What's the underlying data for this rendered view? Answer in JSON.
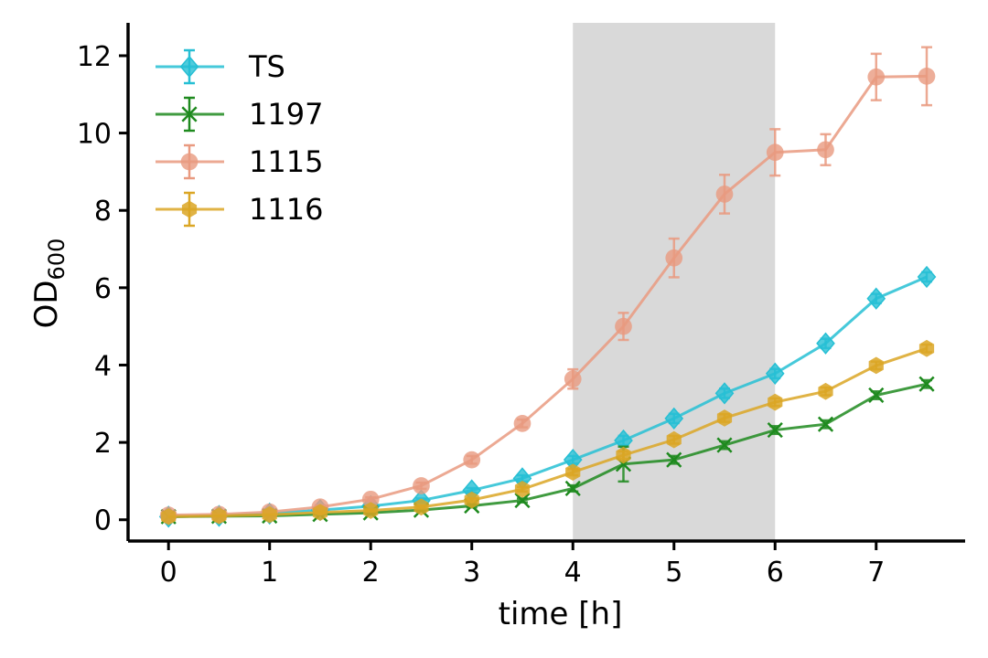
{
  "chart_data": {
    "type": "line",
    "xlabel": "time [h]",
    "ylabel": "OD",
    "ylabel_subscript": "600",
    "xlim": [
      -0.4,
      7.88
    ],
    "ylim": [
      -0.55,
      12.85
    ],
    "xticks": [
      0,
      1,
      2,
      3,
      4,
      5,
      6,
      7
    ],
    "yticks": [
      0,
      2,
      4,
      6,
      8,
      10,
      12
    ],
    "grid": false,
    "legend_position": "upper-left",
    "shaded_interval": {
      "x0": 4,
      "x1": 6,
      "color": "#d9d9d9"
    },
    "x": [
      0,
      0.5,
      1,
      1.5,
      2,
      2.5,
      3,
      3.5,
      4,
      4.5,
      5,
      5.5,
      6,
      6.5,
      7,
      7.5
    ],
    "series": [
      {
        "name": "TS",
        "color": "#26bfd4",
        "marker": "diamond",
        "values": [
          0.08,
          0.1,
          0.16,
          0.25,
          0.35,
          0.5,
          0.76,
          1.07,
          1.55,
          2.05,
          2.62,
          3.27,
          3.78,
          4.56,
          5.72,
          6.28
        ],
        "errors": [
          0.02,
          0.02,
          0.03,
          0.03,
          0.04,
          0.05,
          0.06,
          0.08,
          0.1,
          0.12,
          0.12,
          0.12,
          0.12,
          0.12,
          0.12,
          0.12
        ]
      },
      {
        "name": "1197",
        "color": "#1e8a1e",
        "marker": "x",
        "values": [
          0.08,
          0.09,
          0.1,
          0.14,
          0.18,
          0.25,
          0.36,
          0.5,
          0.81,
          1.44,
          1.55,
          1.93,
          2.32,
          2.47,
          3.22,
          3.51
        ],
        "errors": [
          0.02,
          0.02,
          0.02,
          0.02,
          0.03,
          0.03,
          0.04,
          0.05,
          0.08,
          0.45,
          0.1,
          0.1,
          0.1,
          0.1,
          0.1,
          0.1
        ]
      },
      {
        "name": "1115",
        "color": "#e99a80",
        "marker": "circle",
        "values": [
          0.12,
          0.14,
          0.2,
          0.33,
          0.53,
          0.88,
          1.55,
          2.49,
          3.64,
          5.0,
          6.77,
          8.42,
          9.5,
          9.57,
          11.45,
          11.47
        ],
        "errors": [
          0.02,
          0.02,
          0.03,
          0.04,
          0.05,
          0.08,
          0.1,
          0.1,
          0.25,
          0.35,
          0.5,
          0.5,
          0.6,
          0.4,
          0.6,
          0.75
        ]
      },
      {
        "name": "1116",
        "color": "#dba625",
        "marker": "hexagon",
        "values": [
          0.08,
          0.1,
          0.13,
          0.19,
          0.24,
          0.33,
          0.51,
          0.79,
          1.23,
          1.67,
          2.07,
          2.63,
          3.04,
          3.32,
          3.99,
          4.43
        ],
        "errors": [
          0.02,
          0.02,
          0.02,
          0.03,
          0.03,
          0.04,
          0.05,
          0.06,
          0.08,
          0.1,
          0.1,
          0.1,
          0.1,
          0.1,
          0.1,
          0.1
        ]
      }
    ]
  }
}
